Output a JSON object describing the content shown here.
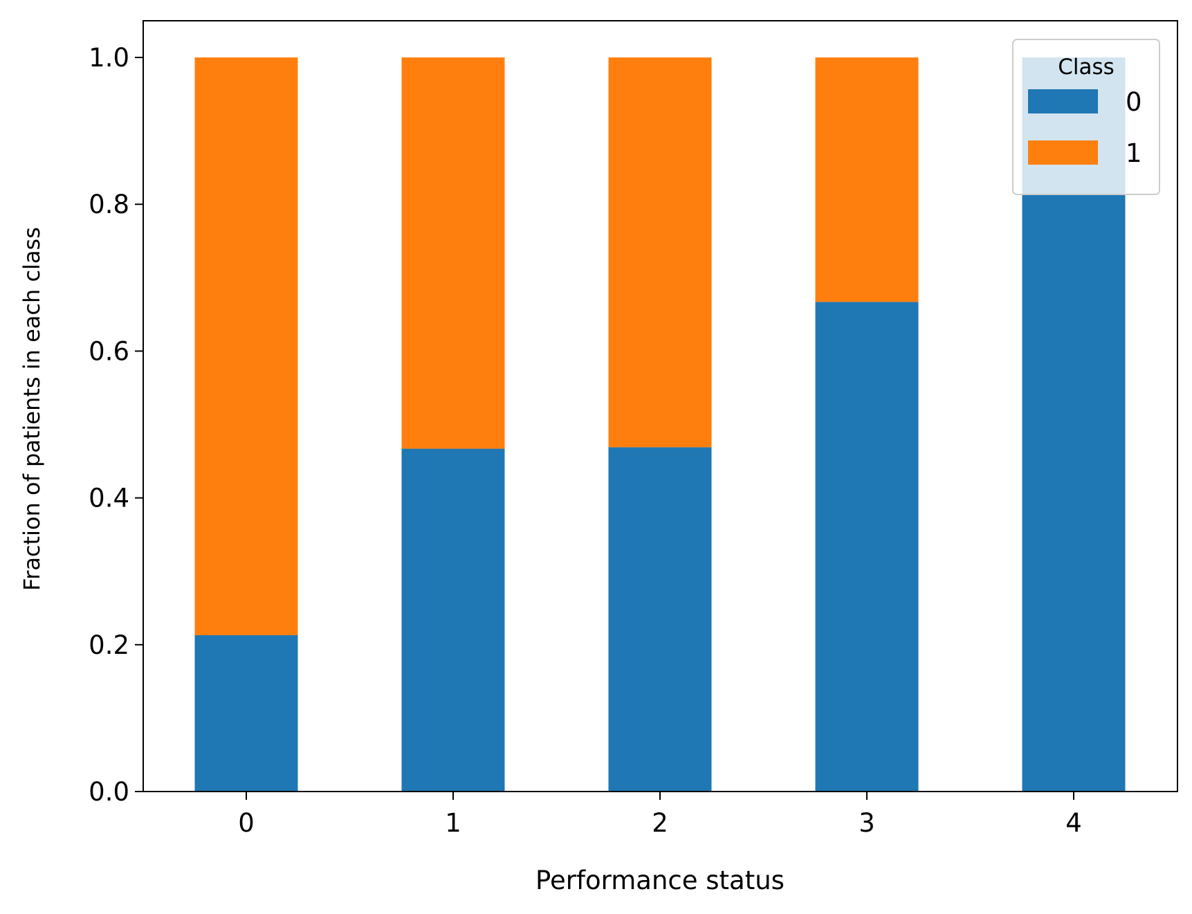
{
  "chart_data": {
    "type": "bar",
    "stacked": true,
    "categories": [
      "0",
      "1",
      "2",
      "3",
      "4"
    ],
    "series": [
      {
        "name": "0",
        "values": [
          0.213,
          0.467,
          0.469,
          0.667,
          1.0
        ],
        "color": "#1f77b4"
      },
      {
        "name": "1",
        "values": [
          0.787,
          0.533,
          0.531,
          0.333,
          0.0
        ],
        "color": "#ff7f0e"
      }
    ],
    "title": "",
    "xlabel": "Performance status",
    "ylabel": "Fraction of patients in each class",
    "ylim": [
      0,
      1.05
    ],
    "yticks": [
      "0.0",
      "0.2",
      "0.4",
      "0.6",
      "0.8",
      "1.0"
    ],
    "legend": {
      "title": "Class",
      "position": "top-right"
    },
    "grid": false
  }
}
